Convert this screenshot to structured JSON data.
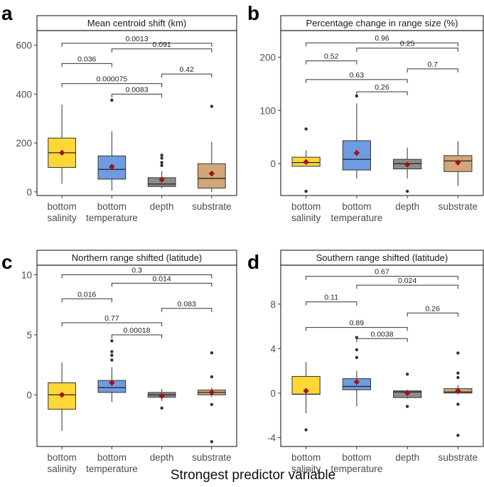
{
  "figure": {
    "xlabel": "Strongest predictor variable",
    "colors": {
      "bottom_salinity": "#FDD835",
      "bottom_temperature": "#6F9BE0",
      "depth": "#8C8C8C",
      "substrate": "#D2A679",
      "mean_marker": "#A50F15",
      "outlier": "#333333"
    }
  },
  "chart_data": [
    {
      "panel": "a",
      "type": "box",
      "title": "Mean centroid shift (km)",
      "categories": [
        "bottom\nsalinity",
        "bottom\ntemperature",
        "depth",
        "substrate"
      ],
      "yticks": [
        0,
        200,
        400,
        600
      ],
      "ylim": [
        -15,
        660
      ],
      "boxes": [
        {
          "whisker_low": 33,
          "q1": 100,
          "median": 160,
          "q3": 220,
          "whisker_high": 357,
          "mean": 160,
          "outliers": []
        },
        {
          "whisker_low": 5,
          "q1": 52,
          "median": 92,
          "q3": 147,
          "whisker_high": 248,
          "mean": 103,
          "outliers": [
            375
          ]
        },
        {
          "whisker_low": 15,
          "q1": 22,
          "median": 32,
          "q3": 58,
          "whisker_high": 85,
          "mean": 50,
          "outliers": [
            108,
            120,
            138,
            150
          ]
        },
        {
          "whisker_low": 0,
          "q1": 15,
          "median": 55,
          "q3": 115,
          "whisker_high": 205,
          "mean": 75,
          "outliers": [
            350
          ]
        }
      ],
      "comparisons": [
        {
          "from": 0,
          "to": 3,
          "label": "0.0013",
          "y": 608
        },
        {
          "from": 1,
          "to": 3,
          "label": "0.091",
          "y": 585
        },
        {
          "from": 0,
          "to": 1,
          "label": "0.036",
          "y": 525
        },
        {
          "from": 2,
          "to": 3,
          "label": "0.42",
          "y": 482
        },
        {
          "from": 0,
          "to": 2,
          "label": "0.000075",
          "y": 443
        },
        {
          "from": 1,
          "to": 2,
          "label": "0.0083",
          "y": 400
        }
      ]
    },
    {
      "panel": "b",
      "type": "box",
      "title": "Percentage change in range size (%)",
      "categories": [
        "bottom\nsalinity",
        "bottom\ntemperature",
        "depth",
        "substrate"
      ],
      "yticks": [
        0,
        100,
        200
      ],
      "ylim": [
        -60,
        250
      ],
      "boxes": [
        {
          "whisker_low": -5,
          "q1": -5,
          "median": 2,
          "q3": 12,
          "whisker_high": 25,
          "mean": 3,
          "outliers": [
            65,
            -52
          ]
        },
        {
          "whisker_low": -28,
          "q1": -12,
          "median": 8,
          "q3": 43,
          "whisker_high": 113,
          "mean": 20,
          "outliers": [
            127
          ]
        },
        {
          "whisker_low": -28,
          "q1": -10,
          "median": 0,
          "q3": 8,
          "whisker_high": 30,
          "mean": -2,
          "outliers": [
            -52
          ]
        },
        {
          "whisker_low": -42,
          "q1": -15,
          "median": 5,
          "q3": 15,
          "whisker_high": 42,
          "mean": 2,
          "outliers": []
        }
      ],
      "comparisons": [
        {
          "from": 0,
          "to": 3,
          "label": "0.96",
          "y": 227
        },
        {
          "from": 1,
          "to": 3,
          "label": "0.25",
          "y": 217
        },
        {
          "from": 0,
          "to": 1,
          "label": "0.52",
          "y": 193
        },
        {
          "from": 2,
          "to": 3,
          "label": "0.7",
          "y": 178
        },
        {
          "from": 0,
          "to": 2,
          "label": "0.63",
          "y": 158
        },
        {
          "from": 1,
          "to": 2,
          "label": "0.26",
          "y": 135
        }
      ]
    },
    {
      "panel": "c",
      "type": "box",
      "title": "Northern range shifted (latitude)",
      "categories": [
        "bottom\nsalinity",
        "bottom\ntemperature",
        "depth",
        "substrate"
      ],
      "yticks": [
        0,
        5,
        10
      ],
      "ylim": [
        -4.3,
        10.8
      ],
      "boxes": [
        {
          "whisker_low": -3,
          "q1": -1.2,
          "median": 0,
          "q3": 1,
          "whisker_high": 2.7,
          "mean": 0,
          "outliers": []
        },
        {
          "whisker_low": -0.6,
          "q1": 0.2,
          "median": 0.6,
          "q3": 1.2,
          "whisker_high": 2.3,
          "mean": 1,
          "outliers": [
            2.9,
            3.3,
            3.6,
            4.5
          ]
        },
        {
          "whisker_low": -0.5,
          "q1": -0.2,
          "median": 0,
          "q3": 0.2,
          "whisker_high": 0.5,
          "mean": -0.1,
          "outliers": [
            -1.1
          ]
        },
        {
          "whisker_low": -0.2,
          "q1": 0,
          "median": 0.2,
          "q3": 0.4,
          "whisker_high": 0.6,
          "mean": 0.2,
          "outliers": [
            1.5,
            3.5,
            -0.8,
            -3.9
          ]
        }
      ],
      "comparisons": [
        {
          "from": 0,
          "to": 3,
          "label": "0.3",
          "y": 10.0
        },
        {
          "from": 1,
          "to": 3,
          "label": "0.014",
          "y": 9.3
        },
        {
          "from": 0,
          "to": 1,
          "label": "0.016",
          "y": 8.0
        },
        {
          "from": 2,
          "to": 3,
          "label": "0.083",
          "y": 7.2
        },
        {
          "from": 0,
          "to": 2,
          "label": "0.77",
          "y": 6.0
        },
        {
          "from": 1,
          "to": 2,
          "label": "0.00018",
          "y": 5.0
        }
      ]
    },
    {
      "panel": "d",
      "type": "box",
      "title": "Southern range shifted (latitude)",
      "categories": [
        "bottom\nsalinity",
        "bottom\ntemperature",
        "depth",
        "substrate"
      ],
      "yticks": [
        -4,
        0,
        4,
        8
      ],
      "ylim": [
        -4.8,
        11.5
      ],
      "boxes": [
        {
          "whisker_low": -1.8,
          "q1": -0.1,
          "median": -0.1,
          "q3": 1.5,
          "whisker_high": 2.8,
          "mean": 0.2,
          "outliers": [
            -3.3
          ]
        },
        {
          "whisker_low": -1.2,
          "q1": 0.3,
          "median": 0.6,
          "q3": 1.3,
          "whisker_high": 2.0,
          "mean": 1,
          "outliers": [
            3.2,
            3.9,
            5.0
          ]
        },
        {
          "whisker_low": -0.5,
          "q1": -0.4,
          "median": 0.1,
          "q3": 0.2,
          "whisker_high": 0.3,
          "mean": 0,
          "outliers": [
            1.7,
            -1.2
          ]
        },
        {
          "whisker_low": -0.1,
          "q1": 0,
          "median": 0.1,
          "q3": 0.4,
          "whisker_high": 0.7,
          "mean": 0.2,
          "outliers": [
            1.4,
            1.8,
            3.6,
            -1.0,
            -3.8
          ]
        }
      ],
      "comparisons": [
        {
          "from": 0,
          "to": 3,
          "label": "0.67",
          "y": 10.5
        },
        {
          "from": 1,
          "to": 3,
          "label": "0.024",
          "y": 9.7
        },
        {
          "from": 0,
          "to": 1,
          "label": "0.11",
          "y": 8.2
        },
        {
          "from": 2,
          "to": 3,
          "label": "0.26",
          "y": 7.2
        },
        {
          "from": 0,
          "to": 2,
          "label": "0.89",
          "y": 5.9
        },
        {
          "from": 1,
          "to": 2,
          "label": "0.0038",
          "y": 4.9
        }
      ]
    }
  ]
}
